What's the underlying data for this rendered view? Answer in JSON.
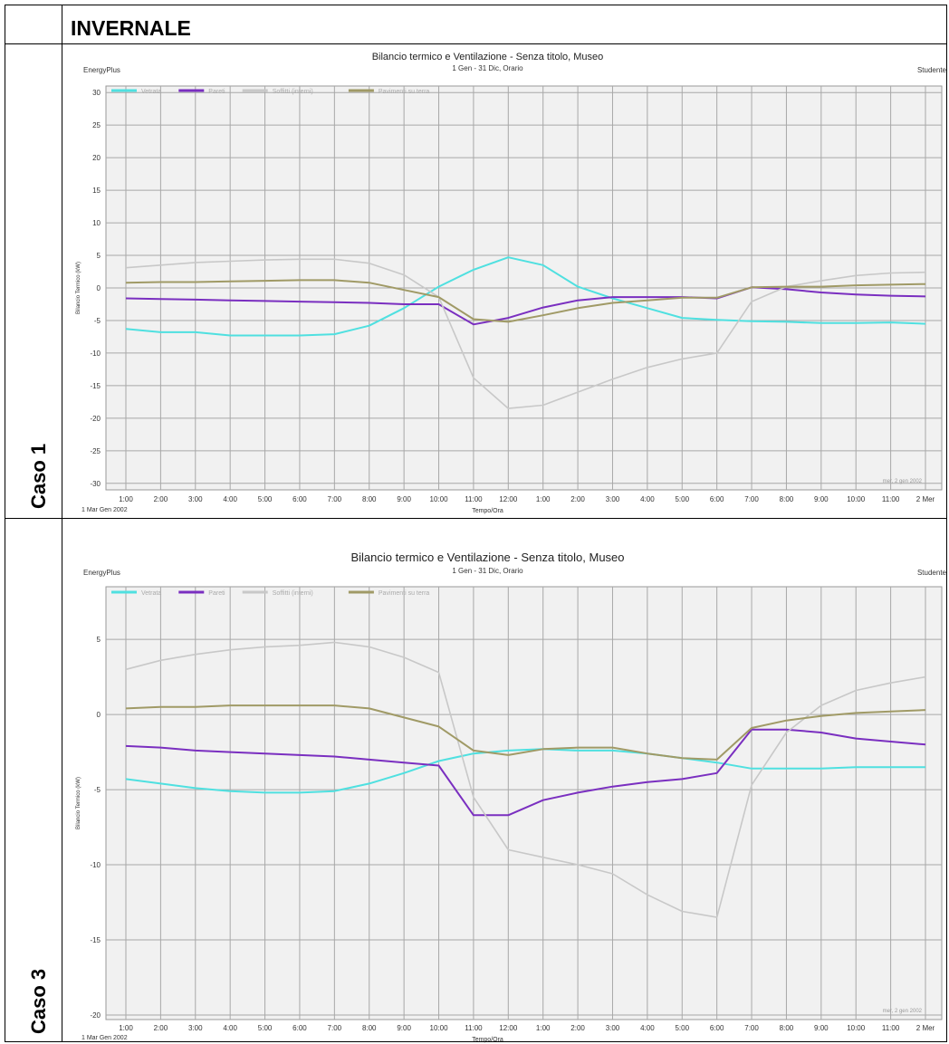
{
  "header": {
    "title": "INVERNALE"
  },
  "panels": [
    {
      "case_label": "Caso 1",
      "title": "Bilancio termico e Ventilazione - Senza titolo, Museo",
      "subtitle": "1 Gen - 31 Dic, Orario",
      "left_tag": "EnergyPlus",
      "right_tag": "Studente",
      "watermark": "mer, 2 gen 2002",
      "date_left": "1 Mar  Gen 2002",
      "ylabel": "Bilancio Termico (kW)"
    },
    {
      "case_label": "Caso 3",
      "title": "Bilancio termico e Ventilazione - Senza titolo, Museo",
      "subtitle": "1 Gen - 31 Dic, Orario",
      "left_tag": "EnergyPlus",
      "right_tag": "Studente",
      "watermark": "mer, 2 gen 2002",
      "date_left": "1 Mar  Gen 2002",
      "ylabel": "Bilancio Termico (kW)"
    }
  ],
  "chart_data": [
    {
      "type": "line",
      "title": "Bilancio termico e Ventilazione - Senza titolo, Museo",
      "subtitle": "1 Gen - 31 Dic, Orario",
      "xlabel": "Tempo/Ora",
      "ylabel": "Bilancio Termico (kW)",
      "ylim": [
        -31,
        31
      ],
      "yticks": [
        30,
        25,
        20,
        15,
        10,
        5,
        0,
        -5,
        -10,
        -15,
        -20,
        -25,
        -30
      ],
      "categories": [
        "1:00",
        "2:00",
        "3:00",
        "4:00",
        "5:00",
        "6:00",
        "7:00",
        "8:00",
        "9:00",
        "10:00",
        "11:00",
        "12:00",
        "1:00",
        "2:00",
        "3:00",
        "4:00",
        "5:00",
        "6:00",
        "7:00",
        "8:00",
        "9:00",
        "10:00",
        "11:00",
        "2 Mer"
      ],
      "grid": true,
      "legend_position": "top-left",
      "series": [
        {
          "name": "Vetrata",
          "color": "#4fe0e0",
          "values": [
            -6.3,
            -6.8,
            -6.8,
            -7.3,
            -7.3,
            -7.3,
            -7.1,
            -5.8,
            -3.1,
            0.2,
            2.8,
            4.7,
            3.5,
            0.2,
            -1.6,
            -3.1,
            -4.6,
            -4.9,
            -5.1,
            -5.2,
            -5.4,
            -5.4,
            -5.3,
            -5.5
          ]
        },
        {
          "name": "Pareti",
          "color": "#7a2fc0",
          "values": [
            -1.6,
            -1.7,
            -1.8,
            -1.9,
            -2.0,
            -2.1,
            -2.2,
            -2.3,
            -2.5,
            -2.5,
            -5.6,
            -4.6,
            -3.0,
            -1.9,
            -1.4,
            -1.4,
            -1.4,
            -1.6,
            0.1,
            -0.2,
            -0.7,
            -1.0,
            -1.2,
            -1.3
          ]
        },
        {
          "name": "Soffitti (interni)",
          "color": "#c8c8c8",
          "values": [
            3.1,
            3.5,
            3.9,
            4.1,
            4.3,
            4.4,
            4.4,
            3.8,
            2.0,
            -1.4,
            -13.8,
            -18.5,
            -18.0,
            -16.0,
            -14.0,
            -12.2,
            -10.9,
            -10.0,
            -2.1,
            0.2,
            1.1,
            1.9,
            2.3,
            2.4
          ]
        },
        {
          "name": "Pavimenti su terra",
          "color": "#a09a66",
          "values": [
            0.8,
            0.9,
            0.9,
            1.0,
            1.1,
            1.2,
            1.2,
            0.8,
            -0.3,
            -1.4,
            -4.8,
            -5.2,
            -4.2,
            -3.1,
            -2.3,
            -1.9,
            -1.5,
            -1.5,
            0.1,
            0.2,
            0.2,
            0.4,
            0.5,
            0.6
          ]
        }
      ]
    },
    {
      "type": "line",
      "title": "Bilancio termico e Ventilazione - Senza titolo, Museo",
      "subtitle": "1 Gen - 31 Dic, Orario",
      "xlabel": "Tempo/Ora",
      "ylabel": "Bilancio Termico (kW)",
      "ylim": [
        -20.3,
        8.5
      ],
      "yticks": [
        5,
        0,
        -5,
        -10,
        -15,
        -20
      ],
      "categories": [
        "1:00",
        "2:00",
        "3:00",
        "4:00",
        "5:00",
        "6:00",
        "7:00",
        "8:00",
        "9:00",
        "10:00",
        "11:00",
        "12:00",
        "1:00",
        "2:00",
        "3:00",
        "4:00",
        "5:00",
        "6:00",
        "7:00",
        "8:00",
        "9:00",
        "10:00",
        "11:00",
        "2 Mer"
      ],
      "grid": true,
      "legend_position": "top-left",
      "series": [
        {
          "name": "Vetrata",
          "color": "#4fe0e0",
          "values": [
            -4.3,
            -4.6,
            -4.9,
            -5.1,
            -5.2,
            -5.2,
            -5.1,
            -4.6,
            -3.9,
            -3.1,
            -2.6,
            -2.4,
            -2.3,
            -2.4,
            -2.4,
            -2.6,
            -2.9,
            -3.2,
            -3.6,
            -3.6,
            -3.6,
            -3.5,
            -3.5,
            -3.5
          ]
        },
        {
          "name": "Pareti",
          "color": "#7a2fc0",
          "values": [
            -2.1,
            -2.2,
            -2.4,
            -2.5,
            -2.6,
            -2.7,
            -2.8,
            -3.0,
            -3.2,
            -3.4,
            -6.7,
            -6.7,
            -5.7,
            -5.2,
            -4.8,
            -4.5,
            -4.3,
            -3.9,
            -1.0,
            -1.0,
            -1.2,
            -1.6,
            -1.8,
            -2.0
          ]
        },
        {
          "name": "Soffitti (interni)",
          "color": "#c8c8c8",
          "values": [
            3.0,
            3.6,
            4.0,
            4.3,
            4.5,
            4.6,
            4.8,
            4.5,
            3.8,
            2.8,
            -5.5,
            -9.0,
            -9.5,
            -10.0,
            -10.6,
            -12.0,
            -13.1,
            -13.5,
            -4.7,
            -1.2,
            0.6,
            1.6,
            2.1,
            2.5
          ]
        },
        {
          "name": "Pavimenti su terra",
          "color": "#a09a66",
          "values": [
            0.4,
            0.5,
            0.5,
            0.6,
            0.6,
            0.6,
            0.6,
            0.4,
            -0.2,
            -0.8,
            -2.4,
            -2.7,
            -2.3,
            -2.2,
            -2.2,
            -2.6,
            -2.9,
            -3.0,
            -0.9,
            -0.4,
            -0.1,
            0.1,
            0.2,
            0.3
          ]
        }
      ]
    }
  ]
}
